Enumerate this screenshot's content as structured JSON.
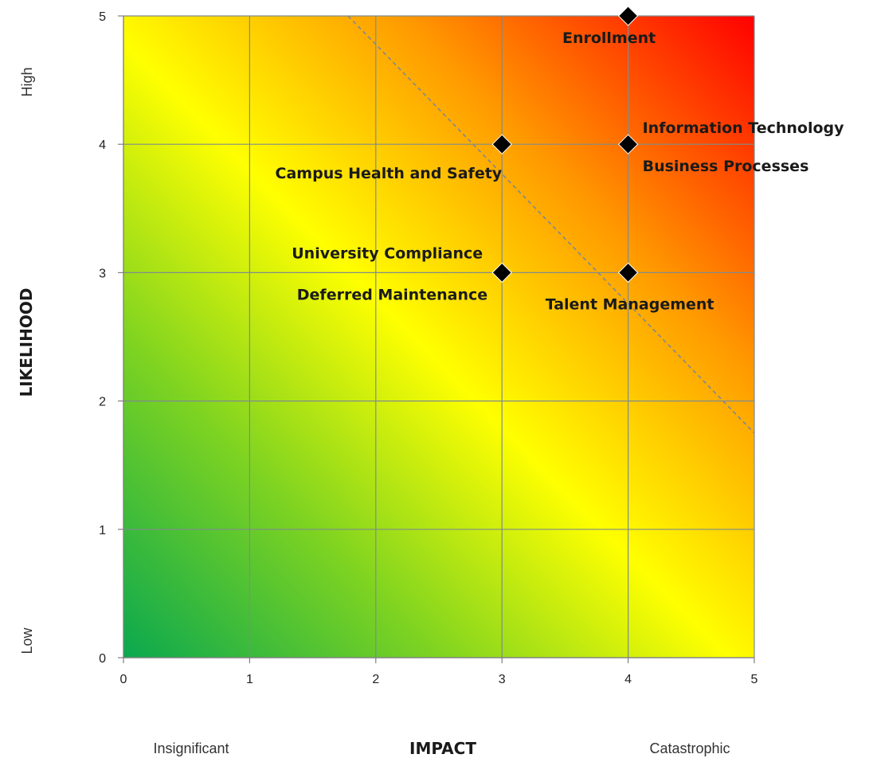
{
  "chart_data": {
    "type": "scatter",
    "xlabel": "IMPACT",
    "ylabel": "LIKELIHOOD",
    "xlim": [
      0,
      5
    ],
    "ylim": [
      0,
      5
    ],
    "x_ticks": [
      "0",
      "1",
      "2",
      "3",
      "4",
      "5"
    ],
    "y_ticks": [
      "0",
      "1",
      "2",
      "3",
      "4",
      "5"
    ],
    "x_end_labels": {
      "low": "Insignificant",
      "high": "Catastrophic"
    },
    "y_end_labels": {
      "low": "Low",
      "high": "High"
    },
    "grid": true,
    "background": "diagonal heat gradient green (low) to yellow to orange to red (high)",
    "colors": {
      "green": "#0aa84f",
      "yellow": "#ffff00",
      "orange": "#ff8a00",
      "red": "#ff0000",
      "marker": "#000000",
      "grid": "#7f8c8d"
    },
    "threshold_line": {
      "style": "dashed",
      "points": [
        [
          1.78,
          5
        ],
        [
          5,
          1.75
        ]
      ]
    },
    "points": [
      {
        "x": 4,
        "y": 5,
        "labels": [
          "Enrollment"
        ]
      },
      {
        "x": 3,
        "y": 4,
        "labels": [
          "Campus Health and Safety"
        ]
      },
      {
        "x": 4,
        "y": 4,
        "labels": [
          "Information Technology",
          "Business Processes"
        ]
      },
      {
        "x": 3,
        "y": 3,
        "labels": [
          "University Compliance",
          "Deferred Maintenance"
        ]
      },
      {
        "x": 4,
        "y": 3,
        "labels": [
          "Talent Management"
        ]
      }
    ]
  }
}
